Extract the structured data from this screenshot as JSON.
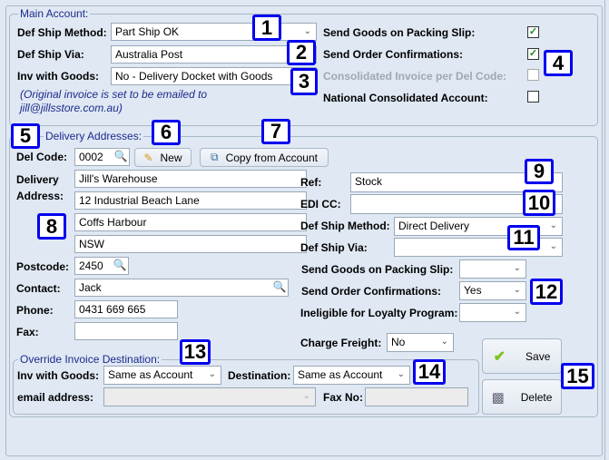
{
  "main_account": {
    "legend": "Main Account:",
    "def_ship_method": {
      "label": "Def Ship Method:",
      "value": "Part Ship OK"
    },
    "def_ship_via": {
      "label": "Def Ship Via:",
      "value": "Australia Post"
    },
    "inv_with_goods": {
      "label": "Inv with Goods:",
      "value": "No - Delivery Docket with Goods"
    },
    "note1": "(Original invoice is set to be emailed to",
    "note2": "jill@jillsstore.com.au)",
    "checks": [
      {
        "label": "Send Goods on Packing Slip:",
        "checked": true,
        "enabled": true
      },
      {
        "label": "Send Order Confirmations:",
        "checked": true,
        "enabled": true
      },
      {
        "label": "Consolidated Invoice per Del Code:",
        "checked": false,
        "enabled": false
      },
      {
        "label": "National Consolidated Account:",
        "checked": false,
        "enabled": true
      }
    ]
  },
  "delivery": {
    "legend": "Delivery Addresses:",
    "del_code_label": "Del Code:",
    "del_code": "0002",
    "new_label": "New",
    "copy_label": "Copy from Account",
    "delivery_label": "Delivery",
    "address_label": "Address:",
    "address": [
      "Jill's Warehouse",
      "12 Industrial Beach Lane",
      "Coffs Harbour",
      "NSW"
    ],
    "postcode_label": "Postcode:",
    "postcode": "2450",
    "contact_label": "Contact:",
    "contact": "Jack",
    "phone_label": "Phone:",
    "phone": "0431 669 665",
    "fax_label": "Fax:",
    "fax": "",
    "ref_label": "Ref:",
    "ref": "Stock",
    "edi_label": "EDI CC:",
    "edi": "",
    "ship_method_label": "Def Ship Method:",
    "ship_method": "Direct Delivery",
    "ship_via_label": "Def Ship Via:",
    "ship_via": "",
    "packing_label": "Send Goods on Packing Slip:",
    "packing": "",
    "confirm_label": "Send Order Confirmations:",
    "confirm": "Yes",
    "loyalty_label": "Ineligible for Loyalty Program:",
    "loyalty": "",
    "freight_label": "Charge Freight:",
    "freight": "No",
    "save_label": "Save",
    "delete_label": "Delete"
  },
  "override": {
    "legend": "Override Invoice Destination:",
    "inv_label": "Inv with Goods:",
    "inv": "Same as Account",
    "dest_label": "Destination:",
    "dest": "Same as Account",
    "email_label": "email address:",
    "email": "",
    "fax_label": "Fax No:",
    "fax": ""
  },
  "badges": [
    "1",
    "2",
    "3",
    "4",
    "5",
    "6",
    "7",
    "8",
    "9",
    "10",
    "11",
    "12",
    "13",
    "14",
    "15"
  ],
  "colors": {
    "badge_border": "#0000ee",
    "background": "#dfe8f3"
  }
}
